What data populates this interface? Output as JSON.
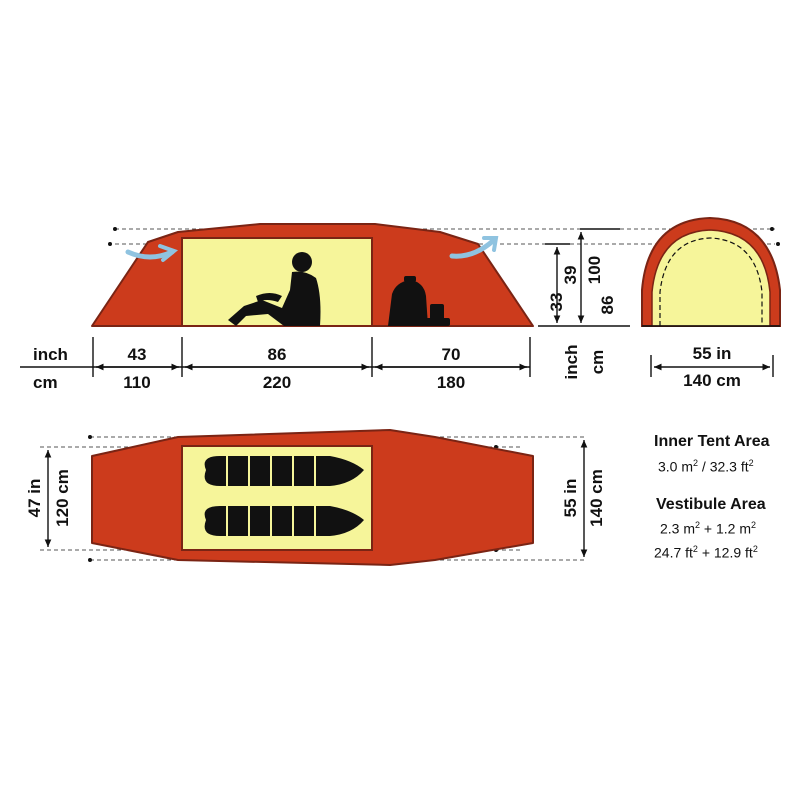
{
  "colors": {
    "fly": "#cc3b1c",
    "fly_edge": "#7a2414",
    "inner": "#f6f59a",
    "vent": "#8fc3e0",
    "silhouette": "#111111"
  },
  "side_view": {
    "row_units": {
      "inch": "inch",
      "cm": "cm"
    },
    "segments": [
      {
        "inch": "43",
        "cm": "110"
      },
      {
        "inch": "86",
        "cm": "220"
      },
      {
        "inch": "70",
        "cm": "180"
      }
    ],
    "inner_heights": {
      "inch": "33",
      "cm": "86"
    },
    "outer_heights": {
      "inch": "39",
      "cm": "100"
    },
    "height_units": {
      "inch": "inch",
      "cm": "cm"
    },
    "silhouettes": [
      "person-sitting-icon",
      "backpack-icon"
    ],
    "vents": [
      "vent-arrow-left-icon",
      "vent-arrow-right-icon"
    ]
  },
  "end_view": {
    "width_inch": "55 in",
    "width_cm": "140 cm"
  },
  "top_view": {
    "inner_width_inch": "47 in",
    "inner_width_cm": "120 cm",
    "outer_width_inch": "55 in",
    "outer_width_cm": "140 cm",
    "sleeping_bags": [
      "sleeping-bag-icon",
      "sleeping-bag-icon"
    ]
  },
  "info": {
    "inner_title": "Inner Tent Area",
    "inner_value": {
      "a": "3.0 m",
      "b": "2",
      "c": " / 32.3 ft",
      "d": "2"
    },
    "vestibule_title": "Vestibule Area",
    "vestibule_line1": {
      "a": "2.3 m",
      "b": "2",
      "c": " + 1.2 m",
      "d": "2"
    },
    "vestibule_line2": {
      "a": "24.7 ft",
      "b": "2",
      "c": " + 12.9 ft",
      "d": "2"
    }
  }
}
